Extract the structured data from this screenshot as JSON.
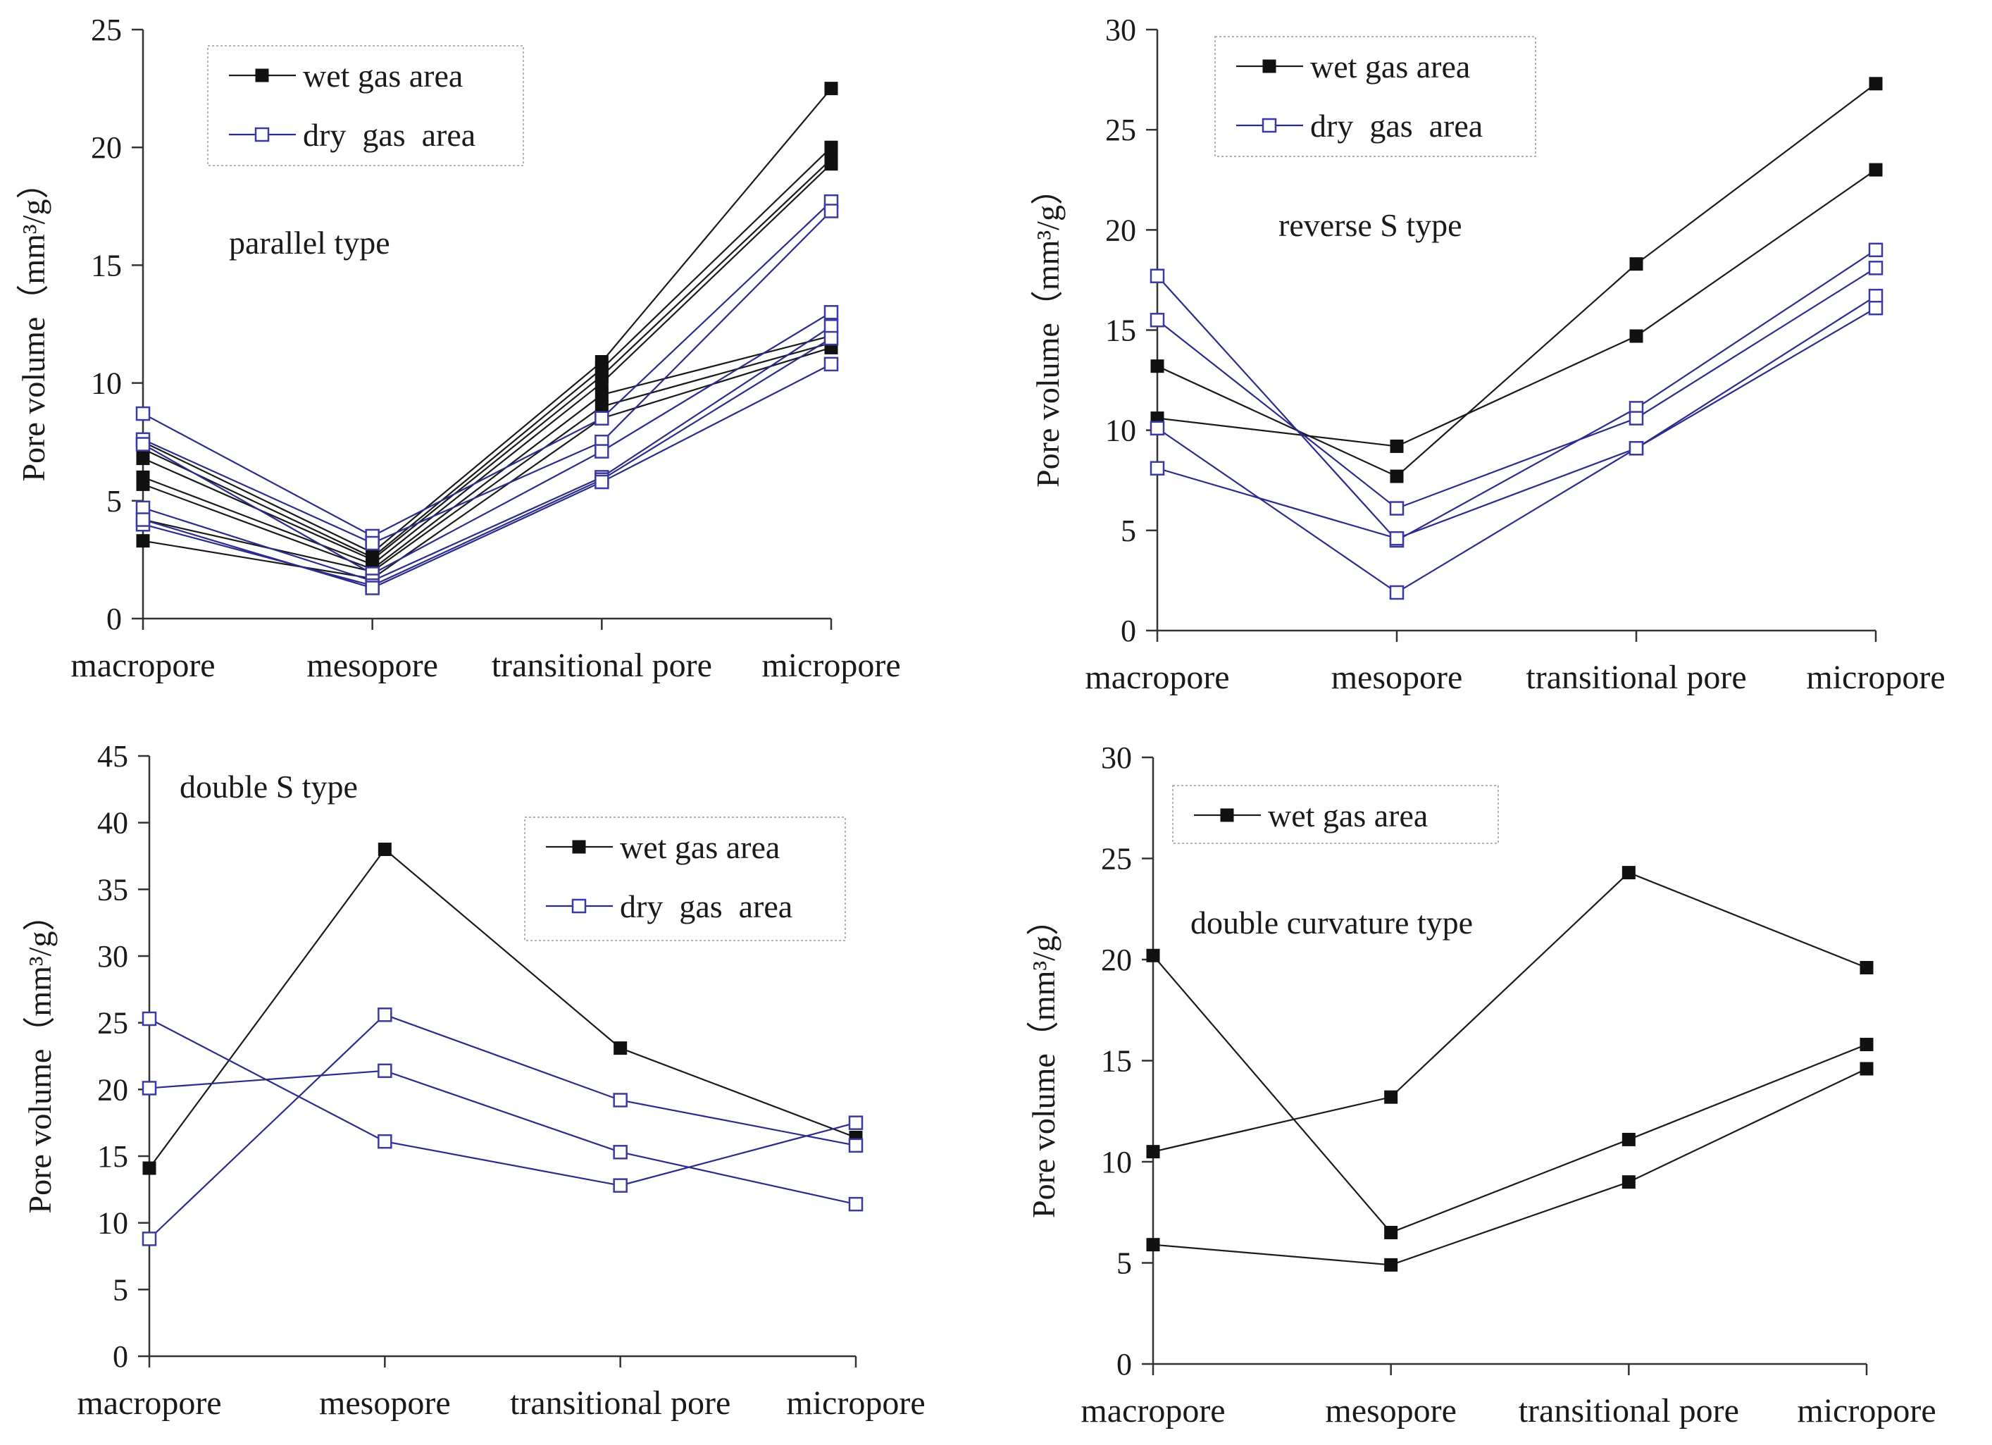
{
  "chart_data": [
    {
      "type": "line",
      "annotation": "parallel type",
      "ylabel": "Pore volume（mm³/g）",
      "categories": [
        "macropore",
        "mesopore",
        "transitional pore",
        "micropore"
      ],
      "ylim": [
        0,
        25
      ],
      "yticks": [
        0,
        5,
        10,
        15,
        20,
        25
      ],
      "legend": [
        "wet gas area",
        "dry  gas  area"
      ],
      "series": [
        {
          "name": "wet gas area",
          "values": [
            7.5,
            2.8,
            10.9,
            22.5
          ]
        },
        {
          "name": "wet gas area",
          "values": [
            7.2,
            2.6,
            10.6,
            20.0
          ]
        },
        {
          "name": "wet gas area",
          "values": [
            6.8,
            2.5,
            10.3,
            19.5
          ]
        },
        {
          "name": "wet gas area",
          "values": [
            6.0,
            2.3,
            10.0,
            19.3
          ]
        },
        {
          "name": "wet gas area",
          "values": [
            5.7,
            2.1,
            9.5,
            12.0
          ]
        },
        {
          "name": "wet gas area",
          "values": [
            4.2,
            2.0,
            9.0,
            11.7
          ]
        },
        {
          "name": "wet gas area",
          "values": [
            3.3,
            1.7,
            8.5,
            11.5
          ]
        },
        {
          "name": "dry  gas  area",
          "values": [
            8.7,
            3.5,
            8.5,
            17.7
          ]
        },
        {
          "name": "dry  gas  area",
          "values": [
            7.6,
            3.2,
            7.5,
            17.3
          ]
        },
        {
          "name": "dry  gas  area",
          "values": [
            7.4,
            1.9,
            7.1,
            13.0
          ]
        },
        {
          "name": "dry  gas  area",
          "values": [
            4.7,
            1.6,
            6.0,
            12.4
          ]
        },
        {
          "name": "dry  gas  area",
          "values": [
            4.0,
            1.4,
            5.9,
            11.9
          ]
        },
        {
          "name": "dry  gas  area",
          "values": [
            4.2,
            1.3,
            5.8,
            10.8
          ]
        }
      ]
    },
    {
      "type": "line",
      "annotation": "reverse S type",
      "ylabel": "Pore volume（mm³/g）",
      "categories": [
        "macropore",
        "mesopore",
        "transitional pore",
        "micropore"
      ],
      "ylim": [
        0,
        30
      ],
      "yticks": [
        0,
        5,
        10,
        15,
        20,
        25,
        30
      ],
      "legend": [
        "wet gas area",
        "dry  gas  area"
      ],
      "series": [
        {
          "name": "wet gas area",
          "values": [
            13.2,
            7.7,
            18.3,
            27.3
          ]
        },
        {
          "name": "wet gas area",
          "values": [
            10.6,
            9.2,
            14.7,
            23.0
          ]
        },
        {
          "name": "dry  gas  area",
          "values": [
            17.7,
            4.5,
            11.1,
            19.0
          ]
        },
        {
          "name": "dry  gas  area",
          "values": [
            15.5,
            6.1,
            10.6,
            18.1
          ]
        },
        {
          "name": "dry  gas  area",
          "values": [
            10.1,
            1.9,
            9.1,
            16.7
          ]
        },
        {
          "name": "dry  gas  area",
          "values": [
            8.1,
            4.6,
            9.1,
            16.1
          ]
        }
      ]
    },
    {
      "type": "line",
      "annotation": "double S type",
      "ylabel": "Pore volume（mm³/g）",
      "categories": [
        "macropore",
        "mesopore",
        "transitional pore",
        "micropore"
      ],
      "ylim": [
        0,
        45
      ],
      "yticks": [
        0,
        5,
        10,
        15,
        20,
        25,
        30,
        35,
        40,
        45
      ],
      "legend": [
        "wet gas area",
        "dry  gas  area"
      ],
      "series": [
        {
          "name": "wet gas area",
          "values": [
            14.1,
            38.0,
            23.1,
            16.4
          ]
        },
        {
          "name": "dry  gas  area",
          "values": [
            25.3,
            16.1,
            12.8,
            17.5
          ]
        },
        {
          "name": "dry  gas  area",
          "values": [
            20.1,
            21.4,
            15.3,
            11.4
          ]
        },
        {
          "name": "dry  gas  area",
          "values": [
            8.8,
            25.6,
            19.2,
            15.8
          ]
        }
      ]
    },
    {
      "type": "line",
      "annotation": "double curvature type",
      "ylabel": "Pore volume（mm³/g）",
      "categories": [
        "macropore",
        "mesopore",
        "transitional pore",
        "micropore"
      ],
      "ylim": [
        0,
        30
      ],
      "yticks": [
        0,
        5,
        10,
        15,
        20,
        25,
        30
      ],
      "legend": [
        "wet gas area"
      ],
      "series": [
        {
          "name": "wet gas area",
          "values": [
            20.2,
            6.5,
            11.1,
            15.8
          ]
        },
        {
          "name": "wet gas area",
          "values": [
            10.5,
            13.2,
            24.3,
            19.6
          ]
        },
        {
          "name": "wet gas area",
          "values": [
            5.9,
            4.9,
            9.0,
            14.6
          ]
        }
      ]
    }
  ]
}
